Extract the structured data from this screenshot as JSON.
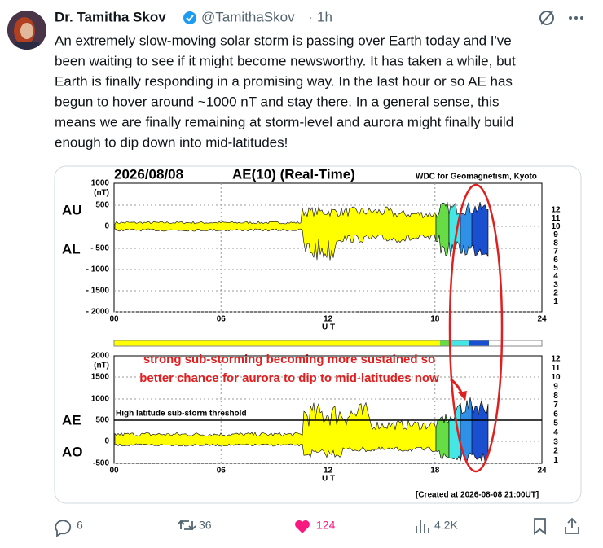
{
  "tweet": {
    "author": "Dr. Tamitha Skov",
    "handle": "@TamithaSkov",
    "separator": "·",
    "time": "1h",
    "text_lines": [
      "An extremely slow-moving solar storm is passing over Earth today and I've",
      "been waiting to see if it might become newsworthy. It has taken a while, but",
      "Earth is finally responding in a promising way. In the last hour or so AE has",
      "begun to hover around ~1000 nT and stay there. In a general sense, this",
      "means we are finally remaining at storm-level and aurora might finally build",
      "enough to dip down into mid-latitudes!"
    ]
  },
  "image": {
    "date": "2026/08/08",
    "title": "AE(10) (Real-Time)",
    "source": "WDC for Geomagnetism, Kyoto",
    "top_panel": {
      "labels": [
        "AU",
        "AL"
      ],
      "yticks": [
        "1000",
        "(nT)",
        "500",
        "0",
        "- 500",
        "- 1000",
        "- 1500",
        "- 2000"
      ],
      "xticks": [
        "00",
        "06",
        "12",
        "18",
        "24"
      ],
      "xlabel": "U T"
    },
    "bottom_panel": {
      "labels": [
        "AE",
        "AO"
      ],
      "yticks": [
        "2000",
        "(nT)",
        "1500",
        "1000",
        "500",
        "0",
        "-500"
      ],
      "xticks": [
        "00",
        "06",
        "12",
        "18",
        "24"
      ],
      "xlabel": "U T",
      "threshold_label": "High latitude sub-storm threshold",
      "annotation": [
        "strong sub-storming becoming more sustained so",
        "better chance for aurora to dip to mid-latitudes now"
      ]
    },
    "scale": [
      "12",
      "11",
      "10",
      "9",
      "8",
      "7",
      "6",
      "5",
      "4",
      "3",
      "2",
      "1"
    ],
    "created": "[Created at 2026-08-08 21:00UT]"
  },
  "actions": {
    "replies": "6",
    "reposts": "36",
    "likes": "124",
    "views": "4.2K"
  }
}
